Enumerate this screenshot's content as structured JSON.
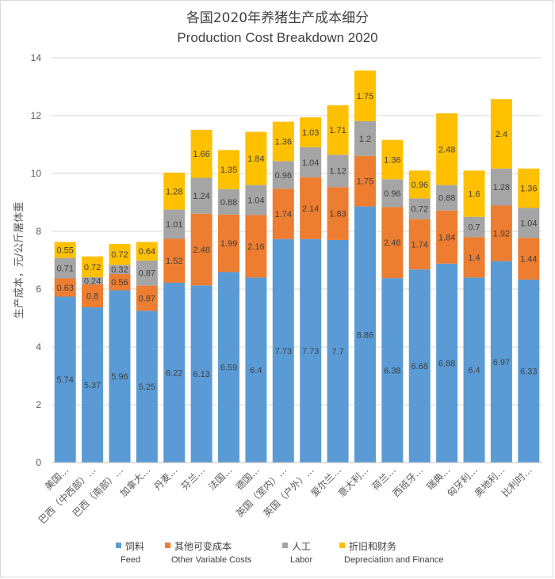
{
  "chart_data": {
    "type": "bar",
    "stacked": true,
    "title": "各国2020年养猪生产成本细分",
    "subtitle": "Production Cost Breakdown 2020",
    "ylabel": "生产成本，元/公斤屠体重",
    "xlabel": "",
    "ylim": [
      0,
      14
    ],
    "yticks": [
      0,
      2,
      4,
      6,
      8,
      10,
      12,
      14
    ],
    "grid": true,
    "legend_position": "bottom",
    "categories": [
      "美国…",
      "巴西（中西部）…",
      "巴西（南部）…",
      "加拿大…",
      "丹麦…",
      "芬兰…",
      "法国…",
      "德国…",
      "英国（室内）…",
      "英国（户外）…",
      "爱尔兰…",
      "意大利…",
      "荷兰…",
      "西班牙…",
      "瑞典…",
      "匈牙利…",
      "奥地利…",
      "比利时…"
    ],
    "series": [
      {
        "name": "饲料",
        "name_en": "Feed",
        "color": "#5b9bd5",
        "values": [
          5.74,
          5.37,
          5.96,
          5.25,
          6.22,
          6.13,
          6.59,
          6.4,
          7.73,
          7.73,
          7.7,
          8.86,
          6.38,
          6.68,
          6.88,
          6.4,
          6.97,
          6.33
        ]
      },
      {
        "name": "其他可变成本",
        "name_en": "Other Variable Costs",
        "color": "#ed7d31",
        "values": [
          0.63,
          0.8,
          0.56,
          0.87,
          1.52,
          2.48,
          1.99,
          2.16,
          1.74,
          2.14,
          1.83,
          1.75,
          2.46,
          1.74,
          1.84,
          1.4,
          1.92,
          1.44
        ]
      },
      {
        "name": "人工",
        "name_en": "Labor",
        "color": "#a5a5a5",
        "values": [
          0.71,
          0.24,
          0.32,
          0.87,
          1.01,
          1.24,
          0.88,
          1.04,
          0.96,
          1.04,
          1.12,
          1.2,
          0.96,
          0.72,
          0.88,
          0.7,
          1.28,
          1.04
        ]
      },
      {
        "name": "折旧和财务",
        "name_en": "Depreciation and Finance",
        "color": "#ffc000",
        "values": [
          0.55,
          0.72,
          0.72,
          0.64,
          1.28,
          1.66,
          1.35,
          1.84,
          1.36,
          1.03,
          1.71,
          1.75,
          1.36,
          0.96,
          2.48,
          1.6,
          2.4,
          1.36
        ]
      }
    ]
  }
}
